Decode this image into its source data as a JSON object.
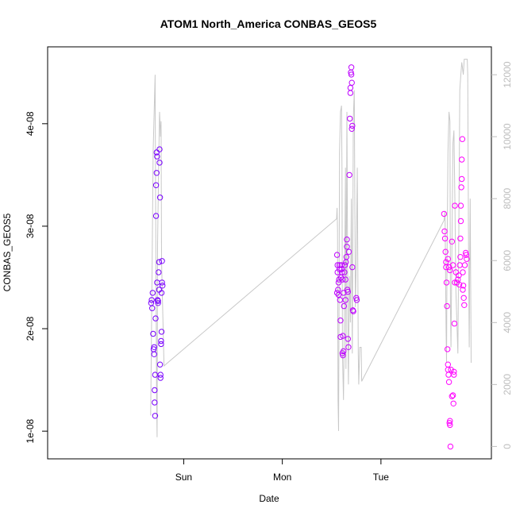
{
  "chart_data": {
    "type": "scatter",
    "title": "ATOM1 North_America CONBAS_GEOS5",
    "xlabel": "Date",
    "ylabel": "CONBAS_GEOS5",
    "x_units": "days",
    "xlim": [
      -1.38,
      3.12
    ],
    "x_ticks": [
      {
        "value": 0,
        "label": "Sun"
      },
      {
        "value": 1,
        "label": "Mon"
      },
      {
        "value": 2,
        "label": "Tue"
      }
    ],
    "ylim": [
      7.3e-09,
      4.75e-08
    ],
    "y_ticks": [
      {
        "value": 1e-08,
        "label": "1e-08"
      },
      {
        "value": 2e-08,
        "label": "2e-08"
      },
      {
        "value": 3e-08,
        "label": "3e-08"
      },
      {
        "value": 4e-08,
        "label": "4e-08"
      }
    ],
    "y2lim": [
      -400,
      12900
    ],
    "y2_ticks": [
      {
        "value": 0,
        "label": "0"
      },
      {
        "value": 2000,
        "label": "2000"
      },
      {
        "value": 4000,
        "label": "4000"
      },
      {
        "value": 6000,
        "label": "6000"
      },
      {
        "value": 8000,
        "label": "8000"
      },
      {
        "value": 10000,
        "label": "10000"
      },
      {
        "value": 12000,
        "label": "12000"
      }
    ],
    "grid": false,
    "line_color": "#c8c8c8",
    "color_scale": [
      "#7a00ff",
      "#ff00ff"
    ],
    "altitude_line": [
      [
        -0.335,
        1000
      ],
      [
        -0.32,
        6000
      ],
      [
        -0.31,
        9500
      ],
      [
        -0.29,
        12000
      ],
      [
        -0.285,
        8000
      ],
      [
        -0.275,
        1500
      ],
      [
        -0.27,
        300
      ],
      [
        -0.265,
        6500
      ],
      [
        -0.255,
        9000
      ],
      [
        -0.245,
        10800
      ],
      [
        -0.235,
        10000
      ],
      [
        -0.23,
        10500
      ],
      [
        -0.225,
        6000
      ],
      [
        -0.2,
        2600
      ],
      [
        1.55,
        7350
      ],
      [
        1.555,
        7700
      ],
      [
        1.56,
        7000
      ],
      [
        1.565,
        1500
      ],
      [
        1.57,
        500
      ],
      [
        1.575,
        4500
      ],
      [
        1.58,
        9500
      ],
      [
        1.59,
        10800
      ],
      [
        1.6,
        11000
      ],
      [
        1.605,
        9000
      ],
      [
        1.61,
        3000
      ],
      [
        1.62,
        1500
      ],
      [
        1.63,
        4500
      ],
      [
        1.64,
        9000
      ],
      [
        1.645,
        2500
      ],
      [
        1.655,
        10800
      ],
      [
        1.665,
        3500
      ],
      [
        1.67,
        2000
      ],
      [
        1.68,
        5500
      ],
      [
        1.69,
        4000
      ],
      [
        1.7,
        8000
      ],
      [
        1.71,
        3000
      ],
      [
        1.72,
        10600
      ],
      [
        1.73,
        11500
      ],
      [
        1.74,
        4500
      ],
      [
        1.75,
        6000
      ],
      [
        1.76,
        9000
      ],
      [
        1.77,
        3000
      ],
      [
        1.775,
        2000
      ],
      [
        1.785,
        3200
      ],
      [
        1.8,
        3200
      ],
      [
        1.805,
        2100
      ],
      [
        2.64,
        7300
      ],
      [
        2.65,
        7600
      ],
      [
        2.66,
        3800
      ],
      [
        2.665,
        2700
      ],
      [
        2.67,
        6000
      ],
      [
        2.68,
        9500
      ],
      [
        2.69,
        10800
      ],
      [
        2.7,
        10500
      ],
      [
        2.705,
        4500
      ],
      [
        2.71,
        3200
      ],
      [
        2.72,
        6500
      ],
      [
        2.73,
        9800
      ],
      [
        2.74,
        10200
      ],
      [
        2.75,
        8000
      ],
      [
        2.76,
        5000
      ],
      [
        2.78,
        3000
      ],
      [
        2.79,
        7000
      ],
      [
        2.8,
        11500
      ],
      [
        2.81,
        12000
      ],
      [
        2.82,
        12400
      ],
      [
        2.835,
        12000
      ],
      [
        2.845,
        12500
      ],
      [
        2.86,
        12500
      ],
      [
        2.875,
        12500
      ],
      [
        2.88,
        12000
      ],
      [
        2.89,
        5500
      ],
      [
        2.895,
        3200
      ],
      [
        2.9,
        6000
      ],
      [
        2.905,
        8000
      ],
      [
        2.915,
        2700
      ]
    ],
    "points": [
      [
        -0.33,
        2.25e-08,
        0
      ],
      [
        -0.325,
        2.28e-08,
        0
      ],
      [
        -0.32,
        2.2e-08,
        0
      ],
      [
        -0.315,
        2.35e-08,
        0
      ],
      [
        -0.31,
        1.95e-08,
        0
      ],
      [
        -0.305,
        1.8e-08,
        0
      ],
      [
        -0.3,
        1.75e-08,
        0
      ],
      [
        -0.3,
        1.82e-08,
        0
      ],
      [
        -0.295,
        1.4e-08,
        0
      ],
      [
        -0.295,
        1.28e-08,
        0
      ],
      [
        -0.29,
        1.15e-08,
        0
      ],
      [
        -0.29,
        1.55e-08,
        0
      ],
      [
        -0.285,
        2.1e-08,
        0
      ],
      [
        -0.28,
        3.1e-08,
        0
      ],
      [
        -0.28,
        3.4e-08,
        0
      ],
      [
        -0.275,
        3.52e-08,
        0
      ],
      [
        -0.275,
        3.72e-08,
        0
      ],
      [
        -0.27,
        3.68e-08,
        0
      ],
      [
        -0.27,
        2.45e-08,
        0
      ],
      [
        -0.265,
        2.28e-08,
        0
      ],
      [
        -0.26,
        2.27e-08,
        0
      ],
      [
        -0.26,
        2.25e-08,
        0
      ],
      [
        -0.255,
        2.55e-08,
        0
      ],
      [
        -0.25,
        2.65e-08,
        0
      ],
      [
        -0.25,
        2.38e-08,
        0
      ],
      [
        -0.245,
        3.75e-08,
        0
      ],
      [
        -0.245,
        3.62e-08,
        0
      ],
      [
        -0.24,
        3.28e-08,
        0
      ],
      [
        -0.24,
        1.65e-08,
        0
      ],
      [
        -0.235,
        1.55e-08,
        0
      ],
      [
        -0.235,
        1.52e-08,
        0
      ],
      [
        -0.23,
        1.85e-08,
        0
      ],
      [
        -0.23,
        1.88e-08,
        0
      ],
      [
        -0.225,
        2.35e-08,
        0
      ],
      [
        -0.225,
        1.97e-08,
        0
      ],
      [
        -0.22,
        2.66e-08,
        0
      ],
      [
        -0.22,
        2.45e-08,
        0
      ],
      [
        -0.215,
        2.42e-08,
        0
      ],
      [
        1.555,
        2.35e-08,
        0.5
      ],
      [
        1.555,
        2.72e-08,
        0.5
      ],
      [
        1.56,
        2.62e-08,
        0.5
      ],
      [
        1.56,
        2.55e-08,
        0.5
      ],
      [
        1.565,
        2.38e-08,
        0.5
      ],
      [
        1.57,
        2.45e-08,
        0.5
      ],
      [
        1.57,
        2.33e-08,
        0.5
      ],
      [
        1.575,
        2.48e-08,
        0.5
      ],
      [
        1.58,
        2.62e-08,
        0.5
      ],
      [
        1.58,
        2.58e-08,
        0.5
      ],
      [
        1.585,
        2.28e-08,
        0.5
      ],
      [
        1.59,
        2.08e-08,
        0.5
      ],
      [
        1.59,
        1.92e-08,
        0.5
      ],
      [
        1.595,
        2.5e-08,
        0.5
      ],
      [
        1.6,
        2.58e-08,
        0.5
      ],
      [
        1.6,
        2.62e-08,
        0.5
      ],
      [
        1.605,
        2.55e-08,
        0.5
      ],
      [
        1.61,
        2.48e-08,
        0.5
      ],
      [
        1.61,
        1.76e-08,
        0.5
      ],
      [
        1.615,
        1.74e-08,
        0.5
      ],
      [
        1.615,
        1.93e-08,
        0.5
      ],
      [
        1.62,
        1.78e-08,
        0.5
      ],
      [
        1.62,
        2.35e-08,
        0.5
      ],
      [
        1.625,
        2.22e-08,
        0.5
      ],
      [
        1.63,
        2.55e-08,
        0.5
      ],
      [
        1.635,
        2.62e-08,
        0.5
      ],
      [
        1.64,
        2.28e-08,
        0.5
      ],
      [
        1.64,
        2.48e-08,
        0.5
      ],
      [
        1.645,
        2.65e-08,
        0.5
      ],
      [
        1.65,
        2.7e-08,
        0.5
      ],
      [
        1.655,
        2.8e-08,
        0.5
      ],
      [
        1.655,
        2.87e-08,
        0.5
      ],
      [
        1.66,
        2.38e-08,
        0.5
      ],
      [
        1.665,
        2.36e-08,
        0.5
      ],
      [
        1.665,
        1.9e-08,
        0.5
      ],
      [
        1.67,
        1.82e-08,
        0.5
      ],
      [
        1.675,
        2.75e-08,
        0.5
      ],
      [
        1.68,
        3.5e-08,
        0.5
      ],
      [
        1.685,
        4.05e-08,
        0.5
      ],
      [
        1.69,
        4.35e-08,
        0.5
      ],
      [
        1.69,
        4.3e-08,
        0.5
      ],
      [
        1.695,
        4.5e-08,
        0.5
      ],
      [
        1.7,
        4.55e-08,
        0.5
      ],
      [
        1.7,
        4.48e-08,
        0.5
      ],
      [
        1.705,
        4.4e-08,
        0.5
      ],
      [
        1.705,
        3.95e-08,
        0.5
      ],
      [
        1.71,
        3.98e-08,
        0.5
      ],
      [
        1.71,
        2.6e-08,
        0.5
      ],
      [
        1.715,
        2.18e-08,
        0.5
      ],
      [
        1.72,
        2.17e-08,
        0.5
      ],
      [
        1.75,
        2.3e-08,
        0.5
      ],
      [
        1.755,
        2.28e-08,
        0.5
      ],
      [
        2.64,
        3.12e-08,
        1
      ],
      [
        2.645,
        2.95e-08,
        1
      ],
      [
        2.65,
        2.88e-08,
        1
      ],
      [
        2.655,
        2.75e-08,
        1
      ],
      [
        2.66,
        2.6e-08,
        1
      ],
      [
        2.66,
        2.65e-08,
        1
      ],
      [
        2.665,
        2.45e-08,
        1
      ],
      [
        2.67,
        2.22e-08,
        1
      ],
      [
        2.675,
        1.8e-08,
        1
      ],
      [
        2.68,
        1.65e-08,
        1
      ],
      [
        2.68,
        1.6e-08,
        1
      ],
      [
        2.685,
        1.55e-08,
        1
      ],
      [
        2.69,
        1.48e-08,
        1
      ],
      [
        2.695,
        1.08e-08,
        1
      ],
      [
        2.7,
        1.1e-08,
        1
      ],
      [
        2.7,
        1.06e-08,
        1
      ],
      [
        2.705,
        8.5e-09,
        1
      ],
      [
        2.71,
        1.6e-08,
        1
      ],
      [
        2.72,
        1.34e-08,
        1
      ],
      [
        2.73,
        1.35e-08,
        1
      ],
      [
        2.735,
        1.27e-08,
        1
      ],
      [
        2.74,
        1.55e-08,
        1
      ],
      [
        2.74,
        1.58e-08,
        1
      ],
      [
        2.745,
        2.05e-08,
        1
      ],
      [
        2.75,
        2.45e-08,
        1
      ],
      [
        2.76,
        2.55e-08,
        1
      ],
      [
        2.77,
        2.45e-08,
        1
      ],
      [
        2.78,
        2.48e-08,
        1
      ],
      [
        2.79,
        2.52e-08,
        1
      ],
      [
        2.795,
        2.43e-08,
        1
      ],
      [
        2.8,
        2.62e-08,
        1
      ],
      [
        2.805,
        2.7e-08,
        1
      ],
      [
        2.805,
        2.88e-08,
        1
      ],
      [
        2.81,
        3.05e-08,
        1
      ],
      [
        2.81,
        3.2e-08,
        1
      ],
      [
        2.815,
        3.38e-08,
        1
      ],
      [
        2.82,
        3.46e-08,
        1
      ],
      [
        2.82,
        3.65e-08,
        1
      ],
      [
        2.825,
        3.85e-08,
        1
      ],
      [
        2.83,
        2.55e-08,
        1
      ],
      [
        2.83,
        2.38e-08,
        1
      ],
      [
        2.835,
        2.42e-08,
        1
      ],
      [
        2.84,
        2.3e-08,
        1
      ],
      [
        2.845,
        2.23e-08,
        1
      ],
      [
        2.85,
        2.62e-08,
        1
      ],
      [
        2.86,
        2.74e-08,
        1
      ],
      [
        2.865,
        2.72e-08,
        1
      ],
      [
        2.87,
        2.68e-08,
        1
      ],
      [
        2.72,
        2.85e-08,
        1
      ],
      [
        2.73,
        2.62e-08,
        1
      ],
      [
        2.68,
        2.68e-08,
        1
      ],
      [
        2.69,
        2.6e-08,
        1
      ],
      [
        2.75,
        3.2e-08,
        1
      ],
      [
        2.7,
        2.57e-08,
        1
      ]
    ]
  }
}
